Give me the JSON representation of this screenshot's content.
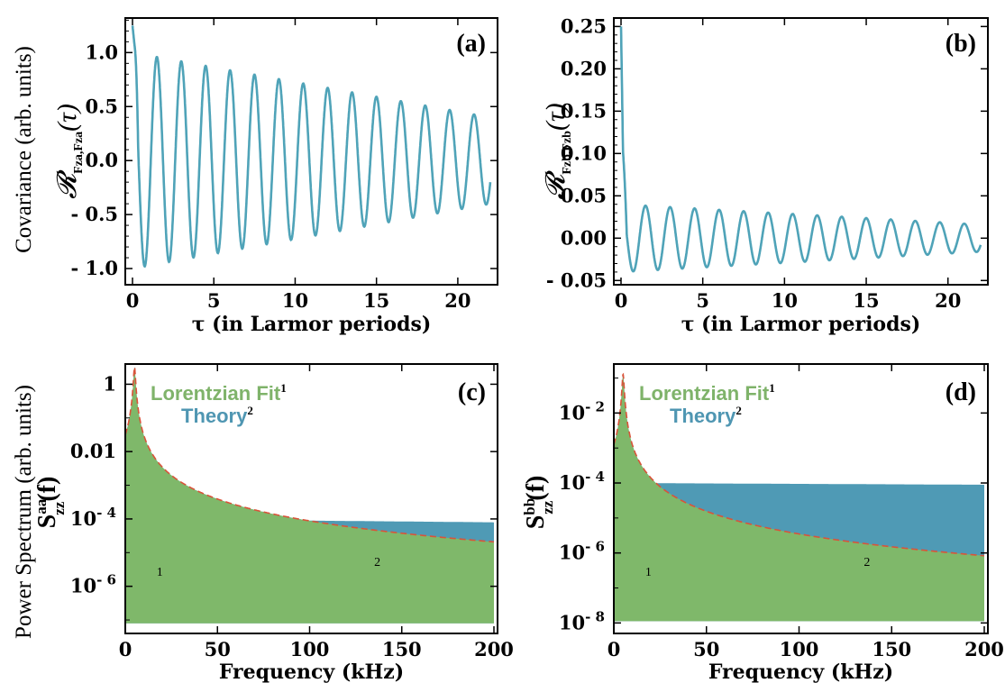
{
  "figure": {
    "left_label_top": "Covariance (arb. units)",
    "left_label_bottom": "Power Spectrum (arb. units)"
  },
  "chart_data": [
    {
      "panel": "a",
      "type": "line",
      "tag": "(a)",
      "ylabel_parts": {
        "script": "𝓡",
        "sub": "F",
        "sub2": "z",
        "sup": "a",
        "close": "(τ)"
      },
      "xlabel": "τ (in Larmor periods)",
      "xlim": [
        0,
        22
      ],
      "ylim": [
        -1.15,
        1.32
      ],
      "xticks": [
        0,
        5,
        10,
        15,
        20
      ],
      "xtick_labels": [
        "0",
        "5",
        "10",
        "15",
        "20"
      ],
      "yticks": [
        -1.0,
        -0.5,
        0.0,
        0.5,
        1.0
      ],
      "ytick_labels": [
        "- 1.0",
        "- 0.5",
        "0.0",
        "0.5",
        "1.0"
      ],
      "color": "#4fa3b8",
      "model": {
        "period": 1.5,
        "initial_spike": 1.25,
        "amp_start": 1.0,
        "amp_end": 0.4,
        "offset": 0.0,
        "end": 22
      }
    },
    {
      "panel": "b",
      "type": "line",
      "tag": "(b)",
      "ylabel_parts": {
        "script": "𝓡",
        "sub": "F",
        "sub2": "z",
        "sup": "b",
        "close": "(τ)"
      },
      "xlabel": "τ (in Larmor periods)",
      "xlim": [
        0,
        22
      ],
      "ylim": [
        -0.055,
        0.26
      ],
      "xticks": [
        0,
        5,
        10,
        15,
        20
      ],
      "xtick_labels": [
        "0",
        "5",
        "10",
        "15",
        "20"
      ],
      "yticks": [
        -0.05,
        0.0,
        0.05,
        0.1,
        0.15,
        0.2,
        0.25
      ],
      "ytick_labels": [
        "- 0.05",
        "0.00",
        "0.05",
        "0.10",
        "0.15",
        "0.20",
        "0.25"
      ],
      "color": "#4fa3b8",
      "model": {
        "period": 1.5,
        "initial_spike": 0.25,
        "amp_start": 0.04,
        "amp_end": 0.016,
        "offset": 0.0,
        "end": 22
      }
    },
    {
      "panel": "c",
      "type": "area",
      "tag": "(c)",
      "ylabel_parts": {
        "main": "S",
        "sub": "zz",
        "sup": "aa",
        "arg": "(f)"
      },
      "xlabel": "Frequency (kHz)",
      "xlim": [
        0,
        200
      ],
      "ylog": true,
      "ylim_log10": [
        -7.4,
        0.6
      ],
      "xticks": [
        0,
        50,
        100,
        150,
        200
      ],
      "xtick_labels": [
        "0",
        "50",
        "100",
        "150",
        "200"
      ],
      "yticks_log10": [
        0,
        -2,
        -4,
        -6
      ],
      "ytick_labels": [
        "1",
        "0.01",
        "10- 4",
        "10- 6"
      ],
      "legend": [
        {
          "name": "Lorentzian Fit",
          "sup": "1",
          "color": "#7fb86a"
        },
        {
          "name": "Theory",
          "sup": "2",
          "color": "#4f9ab5"
        }
      ],
      "region_labels": {
        "fit": "1",
        "theory": "2"
      },
      "peak_khz": 5,
      "theory_floor_log10": -4.0,
      "theory_at_200_log10": -4.1,
      "baseline_log10": -7.1,
      "fit_amp_log10": 0.5,
      "fit_gamma_khz": 0.5,
      "fit_bg_log10": -7.35
    },
    {
      "panel": "d",
      "type": "area",
      "tag": "(d)",
      "ylabel_parts": {
        "main": "S",
        "sub": "zz",
        "sup": "bb",
        "arg": "(f)"
      },
      "xlabel": "Frequency (kHz)",
      "xlim": [
        0,
        200
      ],
      "ylog": true,
      "ylim_log10": [
        -8.3,
        -0.6
      ],
      "xticks": [
        0,
        50,
        100,
        150,
        200
      ],
      "xtick_labels": [
        "0",
        "50",
        "100",
        "150",
        "200"
      ],
      "yticks_log10": [
        -2,
        -4,
        -6,
        -8
      ],
      "ytick_labels": [
        "10- 2",
        "10- 4",
        "10- 6",
        "10- 8"
      ],
      "legend": [
        {
          "name": "Lorentzian Fit",
          "sup": "1",
          "color": "#7fb86a"
        },
        {
          "name": "Theory",
          "sup": "2",
          "color": "#4f9ab5"
        }
      ],
      "region_labels": {
        "fit": "1",
        "theory": "2"
      },
      "peak_khz": 5,
      "theory_floor_log10": -4.0,
      "theory_at_200_log10": -4.05,
      "baseline_log10": -7.95,
      "fit_amp_log10": -0.9,
      "fit_gamma_khz": 0.5,
      "fit_bg_log10": -8.2
    }
  ]
}
